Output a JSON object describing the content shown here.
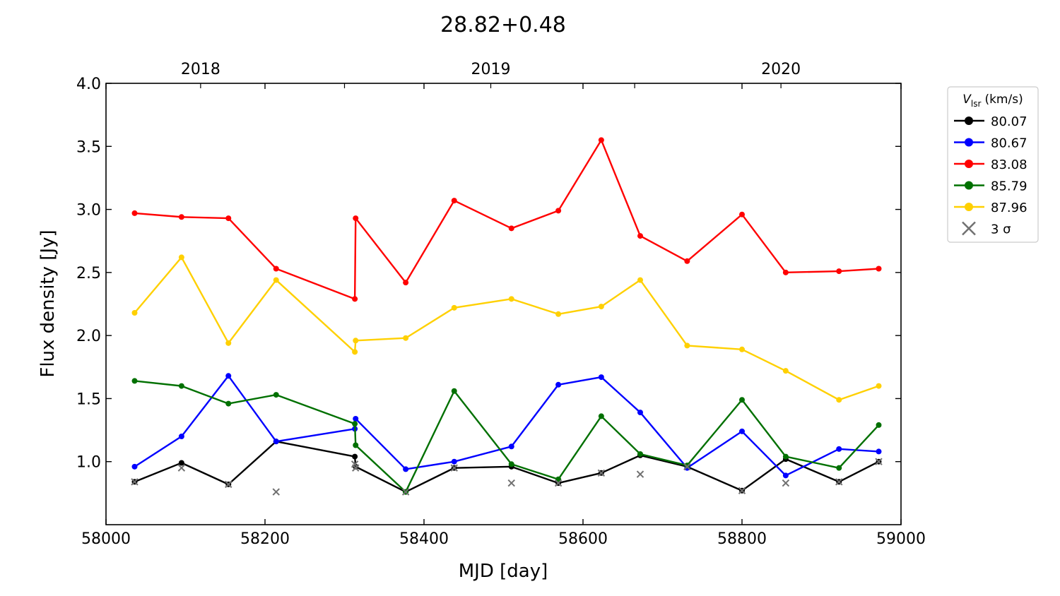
{
  "chart_data": {
    "type": "line",
    "title": "28.82+0.48",
    "xlabel": "MJD [day]",
    "ylabel": "Flux density [Jy]",
    "xlim": [
      58000,
      59000
    ],
    "ylim": [
      0.5,
      4.0
    ],
    "x_ticks": [
      58000,
      58200,
      58400,
      58600,
      58800,
      59000
    ],
    "y_ticks": [
      1.0,
      1.5,
      2.0,
      2.5,
      3.0,
      3.5,
      4.0
    ],
    "top_axis": {
      "labels": [
        "2018",
        "2019",
        "2020"
      ],
      "label_mjd": [
        58119,
        58484,
        58849
      ]
    },
    "grid": false,
    "legend": {
      "title_main": "V",
      "title_sub": "lsr",
      "title_unit": "(km/s)",
      "placement": "outside-right",
      "sigma_label": "3 σ"
    },
    "series": [
      {
        "name": "80.07",
        "color": "#000000",
        "x": [
          58036,
          58095,
          58154,
          58214,
          58313,
          58314,
          58377,
          58438,
          58510,
          58569,
          58623,
          58672,
          58731,
          58800,
          58855,
          58922,
          58972
        ],
        "y": [
          0.84,
          0.99,
          0.82,
          1.16,
          1.04,
          0.96,
          0.76,
          0.95,
          0.96,
          0.83,
          0.91,
          1.05,
          0.96,
          0.77,
          1.02,
          0.84,
          1.0
        ]
      },
      {
        "name": "80.67",
        "color": "#0000ff",
        "x": [
          58036,
          58095,
          58154,
          58214,
          58313,
          58314,
          58377,
          58438,
          58510,
          58569,
          58623,
          58672,
          58731,
          58800,
          58855,
          58922,
          58972
        ],
        "y": [
          0.96,
          1.2,
          1.68,
          1.16,
          1.26,
          1.34,
          0.94,
          1.0,
          1.12,
          1.61,
          1.67,
          1.39,
          0.95,
          1.24,
          0.89,
          1.1,
          1.08
        ]
      },
      {
        "name": "83.08",
        "color": "#ff0000",
        "x": [
          58036,
          58095,
          58154,
          58214,
          58313,
          58314,
          58377,
          58438,
          58510,
          58569,
          58623,
          58672,
          58731,
          58800,
          58855,
          58922,
          58972
        ],
        "y": [
          2.97,
          2.94,
          2.93,
          2.53,
          2.29,
          2.93,
          2.42,
          3.07,
          2.85,
          2.99,
          3.55,
          2.79,
          2.59,
          2.96,
          2.5,
          2.51,
          2.53
        ]
      },
      {
        "name": "85.79",
        "color": "#007000",
        "x": [
          58036,
          58095,
          58154,
          58214,
          58313,
          58314,
          58377,
          58438,
          58510,
          58569,
          58623,
          58672,
          58731,
          58800,
          58855,
          58922,
          58972
        ],
        "y": [
          1.64,
          1.6,
          1.46,
          1.53,
          1.3,
          1.13,
          0.76,
          1.56,
          0.98,
          0.86,
          1.36,
          1.06,
          0.97,
          1.49,
          1.04,
          0.95,
          1.29
        ]
      },
      {
        "name": "87.96",
        "color": "#ffd000",
        "x": [
          58036,
          58095,
          58154,
          58214,
          58313,
          58314,
          58377,
          58438,
          58510,
          58569,
          58623,
          58672,
          58731,
          58800,
          58855,
          58922,
          58972
        ],
        "y": [
          2.18,
          2.62,
          1.94,
          2.44,
          1.87,
          1.96,
          1.98,
          2.22,
          2.29,
          2.17,
          2.23,
          2.44,
          1.92,
          1.89,
          1.72,
          1.49,
          1.6
        ]
      }
    ],
    "sigma_points": {
      "name": "3 σ",
      "color": "#707070",
      "x": [
        58036,
        58095,
        58154,
        58214,
        58313,
        58314,
        58377,
        58438,
        58510,
        58569,
        58623,
        58672,
        58731,
        58800,
        58855,
        58922,
        58972
      ],
      "y": [
        0.84,
        0.95,
        0.82,
        0.76,
        0.98,
        0.95,
        0.76,
        0.95,
        0.83,
        0.83,
        0.91,
        0.9,
        0.96,
        0.77,
        0.83,
        0.84,
        1.0
      ]
    }
  }
}
